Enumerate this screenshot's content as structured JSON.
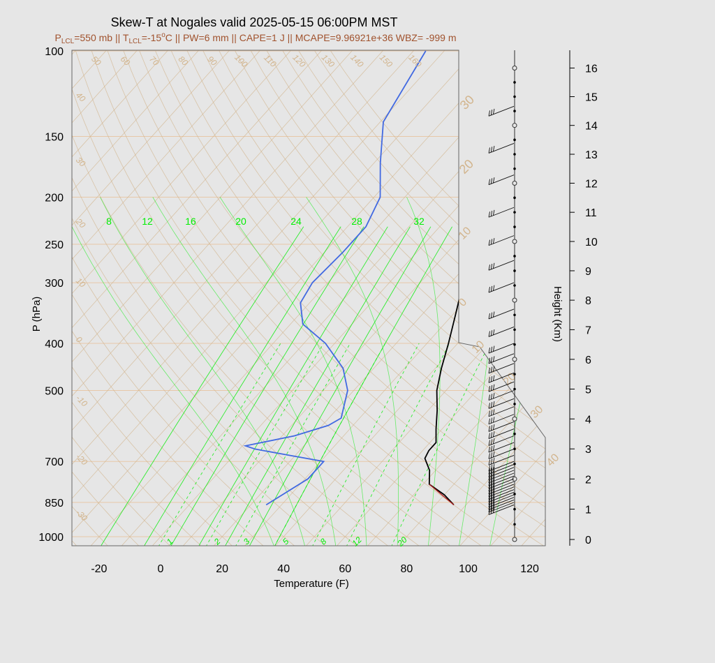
{
  "chart_data": {
    "type": "skew-t",
    "title": "Skew-T at Nogales valid 2025-05-15 06:00PM MST",
    "subtitle_parts": {
      "plcl_pre": "P",
      "plcl_sub": "LCL",
      "plcl_val": "=550 mb || T",
      "tlcl_sub": "LCL",
      "tlcl_val": "=-15",
      "deg": "o",
      "rest": "C || PW=6 mm || CAPE=1 J || MCAPE=9.96921e+36 WBZ= -999 m"
    },
    "xlabel": "Temperature (F)",
    "ylabel": "P (hPa)",
    "y2label": "Height (Km)",
    "xlim": [
      -28,
      125
    ],
    "x_ticks": [
      -20,
      0,
      20,
      40,
      60,
      80,
      100,
      120
    ],
    "pressure_ticks": [
      100,
      150,
      200,
      250,
      300,
      400,
      500,
      700,
      850,
      1000
    ],
    "height_ticks_km": [
      0,
      1,
      2,
      3,
      4,
      5,
      6,
      7,
      8,
      9,
      10,
      11,
      12,
      13,
      14,
      15,
      16
    ],
    "isotherm_labels": [
      50,
      60,
      70,
      80,
      90,
      100,
      110,
      120,
      130,
      140,
      150,
      160
    ],
    "dry_adiabat_labels": [
      40,
      30,
      20,
      10,
      0,
      -10,
      -20,
      -30
    ],
    "edge_labels": [
      30,
      20,
      10,
      0,
      10,
      20,
      30,
      40
    ],
    "mixing_ratio_top_labels": [
      "8",
      "12",
      "16",
      "20",
      "24",
      "28",
      "32"
    ],
    "mixing_ratio_bottom_labels": [
      "1",
      "2",
      "3",
      "5",
      "8",
      "12",
      "20"
    ],
    "temperature_profile": [
      {
        "p": 860,
        "t": 86
      },
      {
        "p": 820,
        "t": 80
      },
      {
        "p": 780,
        "t": 72
      },
      {
        "p": 730,
        "t": 68
      },
      {
        "p": 690,
        "t": 63
      },
      {
        "p": 665,
        "t": 62
      },
      {
        "p": 640,
        "t": 62
      },
      {
        "p": 600,
        "t": 58
      },
      {
        "p": 550,
        "t": 53
      },
      {
        "p": 500,
        "t": 47
      },
      {
        "p": 450,
        "t": 42
      },
      {
        "p": 400,
        "t": 37
      },
      {
        "p": 350,
        "t": 31
      },
      {
        "p": 300,
        "t": 24
      },
      {
        "p": 260,
        "t": 18
      },
      {
        "p": 230,
        "t": 14
      },
      {
        "p": 200,
        "t": 11
      },
      {
        "p": 170,
        "t": 10
      },
      {
        "p": 150,
        "t": 10
      },
      {
        "p": 130,
        "t": 8
      },
      {
        "p": 115,
        "t": 4
      },
      {
        "p": 100,
        "t": -4
      }
    ],
    "lifted_segment": [
      {
        "p": 860,
        "t": 86
      },
      {
        "p": 780,
        "t": 72
      }
    ],
    "dewpoint_profile": [
      {
        "p": 860,
        "t": 25
      },
      {
        "p": 760,
        "t": 31
      },
      {
        "p": 700,
        "t": 31
      },
      {
        "p": 680,
        "t": 18
      },
      {
        "p": 660,
        "t": 5
      },
      {
        "p": 650,
        "t": 1
      },
      {
        "p": 620,
        "t": 14
      },
      {
        "p": 590,
        "t": 22
      },
      {
        "p": 570,
        "t": 24
      },
      {
        "p": 500,
        "t": 18
      },
      {
        "p": 450,
        "t": 10
      },
      {
        "p": 400,
        "t": -3
      },
      {
        "p": 365,
        "t": -16
      },
      {
        "p": 330,
        "t": -23
      },
      {
        "p": 300,
        "t": -25
      },
      {
        "p": 260,
        "t": -24
      },
      {
        "p": 230,
        "t": -24
      },
      {
        "p": 200,
        "t": -28
      },
      {
        "p": 170,
        "t": -38
      },
      {
        "p": 140,
        "t": -49
      },
      {
        "p": 100,
        "t": -56
      }
    ],
    "wind_barb_levels_hpa": [
      860,
      850,
      840,
      830,
      820,
      810,
      800,
      790,
      780,
      770,
      760,
      750,
      740,
      730,
      720,
      710,
      700,
      680,
      660,
      640,
      620,
      600,
      580,
      560,
      540,
      520,
      500,
      480,
      460,
      440,
      420,
      400,
      370,
      340,
      300,
      270,
      240,
      210,
      180,
      155,
      130
    ],
    "height_markers_km": [
      0,
      0.5,
      1,
      1.5,
      2,
      2.5,
      3,
      3.5,
      4,
      4.5,
      5,
      5.5,
      6,
      6.5,
      7,
      7.5,
      8,
      8.5,
      9,
      9.5,
      10,
      10.5,
      11,
      11.5,
      12,
      12.5,
      13,
      13.5,
      14,
      14.5,
      15,
      15.5,
      16
    ],
    "colors": {
      "background": "#e6e6e6",
      "temperature": "#000000",
      "dewpoint": "#4169e1",
      "parcel": "#b22222",
      "isotherm": "#d2b48c",
      "mixing_ratio": "#00ee00",
      "isobar": "#e8c8a8",
      "subtitle": "#a0522d"
    }
  }
}
